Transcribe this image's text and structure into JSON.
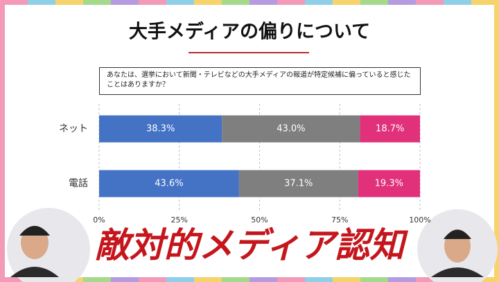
{
  "chart_data": {
    "type": "stacked-bar-horizontal",
    "title": "大手メディアの偏りについて",
    "question": "あなたは、選挙において新聞・テレビなどの大手メディアの報道が特定候補に偏っていると感じたことはありますか？",
    "categories": [
      "ネット",
      "電話"
    ],
    "series": [
      {
        "color": "#4472c4",
        "values": [
          38.3,
          43.6
        ],
        "value_labels": [
          "38.3%",
          "43.6%"
        ]
      },
      {
        "color": "#7f7f7f",
        "values": [
          43.0,
          37.1
        ],
        "value_labels": [
          "43.0%",
          "37.1%"
        ]
      },
      {
        "color": "#e0317a",
        "values": [
          18.7,
          19.3
        ],
        "value_labels": [
          "18.7%",
          "19.3%"
        ]
      }
    ],
    "xlim": [
      0,
      100
    ],
    "xticks": [
      {
        "value": 0,
        "label": "0%"
      },
      {
        "value": 25,
        "label": "25%"
      },
      {
        "value": 50,
        "label": "50%"
      },
      {
        "value": 75,
        "label": "75%"
      },
      {
        "value": 100,
        "label": "100%"
      }
    ],
    "grid": true,
    "caption": "敵対的メディア認知"
  }
}
